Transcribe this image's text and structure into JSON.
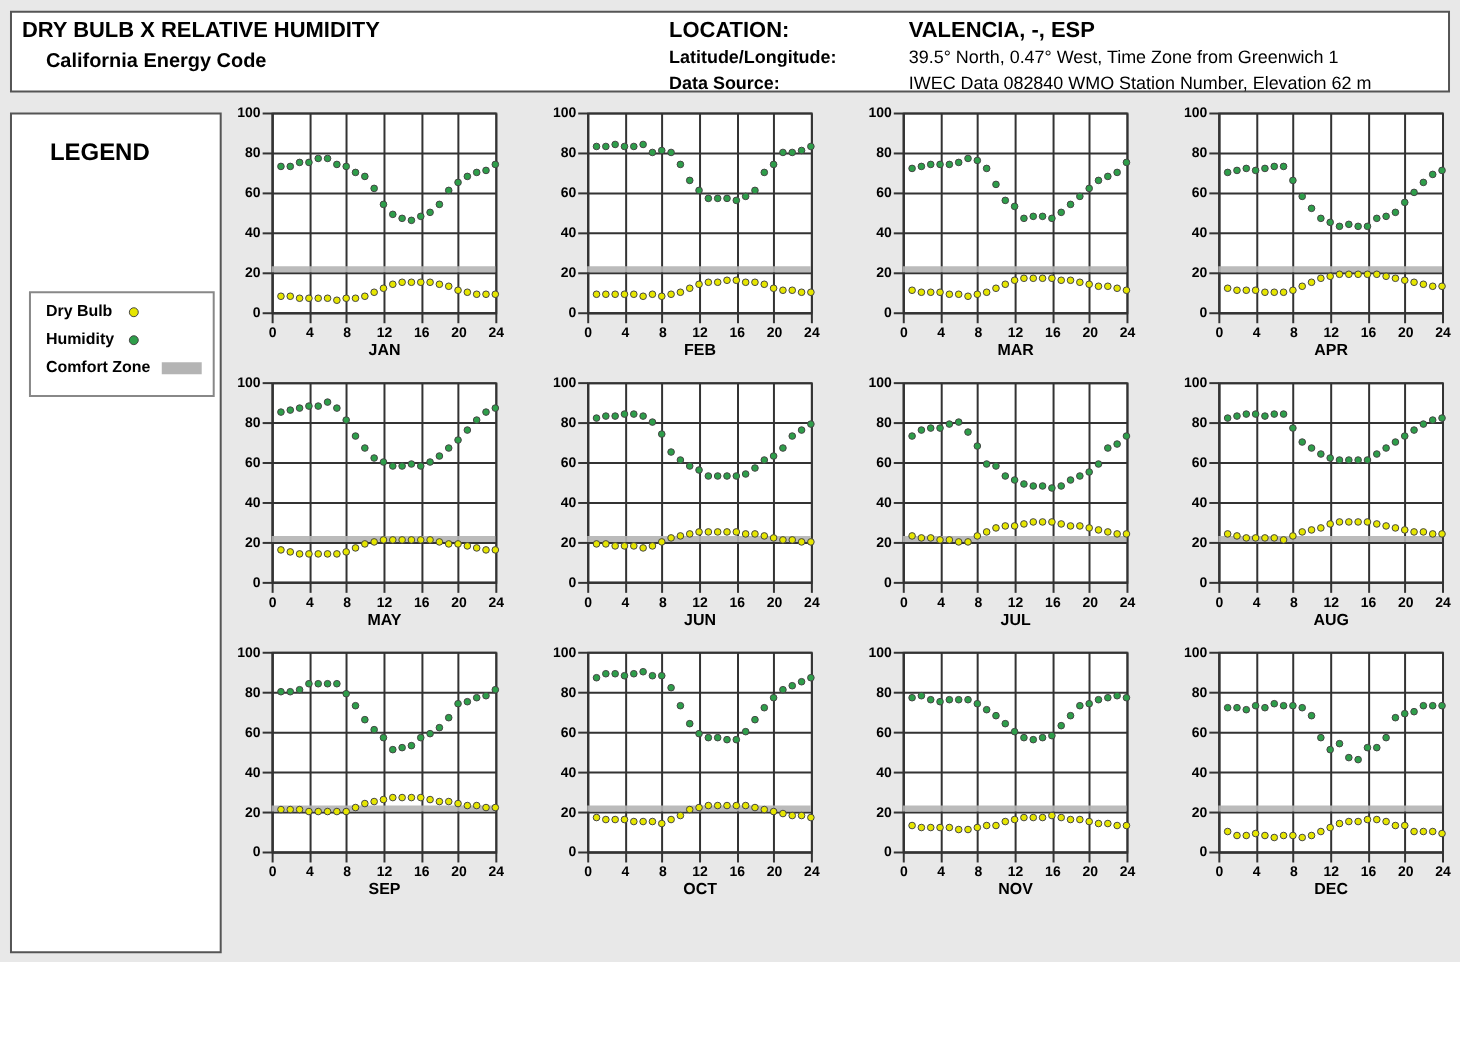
{
  "chart_data": [
    {
      "type": "other",
      "title": "DRY BULB X RELATIVE HUMIDITY",
      "subtitle": "California Energy Code",
      "annotations": [
        "LOCATION:",
        "VALENCIA, -, ESP",
        "Latitude/Longitude:",
        "39.5° North, 0.47° West, Time Zone from Greenwich 1",
        "Data Source:",
        "IWEC Data     082840 WMO Station Number, Elevation 62 m"
      ]
    },
    {
      "type": "scatter",
      "xlabel": "JAN",
      "x": [
        1,
        2,
        3,
        4,
        5,
        6,
        7,
        8,
        9,
        10,
        11,
        12,
        13,
        14,
        15,
        16,
        17,
        18,
        19,
        20,
        21,
        22,
        23,
        24
      ],
      "xlim": [
        0,
        24
      ],
      "xticks": [
        0,
        4,
        8,
        12,
        16,
        20,
        24
      ],
      "ylim": [
        0,
        100
      ],
      "yticks": [
        0,
        20,
        40,
        60,
        80,
        100
      ],
      "grid": true,
      "marker": "circle",
      "legend": "left",
      "legend_title": "LEGEND",
      "series": [
        {
          "name": "Dry Bulb",
          "color": "#e6e600",
          "values": [
            8,
            8,
            7,
            7,
            7,
            7,
            6,
            7,
            7,
            8,
            10,
            12,
            14,
            15,
            15,
            15,
            15,
            14,
            13,
            11,
            10,
            9,
            9,
            9
          ]
        },
        {
          "name": "Humidity",
          "color": "#2e9e4a",
          "values": [
            73,
            73,
            75,
            75,
            77,
            77,
            74,
            73,
            70,
            68,
            62,
            54,
            49,
            47,
            46,
            48,
            50,
            54,
            61,
            65,
            68,
            70,
            71,
            74
          ]
        }
      ],
      "bands": [
        {
          "axis": "y",
          "from": 20,
          "to": 23,
          "label": "Comfort Zone",
          "color": "#b4b4b4"
        }
      ]
    },
    {
      "type": "scatter",
      "xlabel": "FEB",
      "x": [
        1,
        2,
        3,
        4,
        5,
        6,
        7,
        8,
        9,
        10,
        11,
        12,
        13,
        14,
        15,
        16,
        17,
        18,
        19,
        20,
        21,
        22,
        23,
        24
      ],
      "xlim": [
        0,
        24
      ],
      "xticks": [
        0,
        4,
        8,
        12,
        16,
        20,
        24
      ],
      "ylim": [
        0,
        100
      ],
      "yticks": [
        0,
        20,
        40,
        60,
        80,
        100
      ],
      "grid": true,
      "marker": "circle",
      "series": [
        {
          "color": "#e6e600",
          "values": [
            9,
            9,
            9,
            9,
            9,
            8,
            9,
            8,
            9,
            10,
            12,
            14,
            15,
            15,
            16,
            16,
            15,
            15,
            14,
            12,
            11,
            11,
            10,
            10
          ]
        },
        {
          "color": "#2e9e4a",
          "values": [
            83,
            83,
            84,
            83,
            83,
            84,
            80,
            81,
            80,
            74,
            66,
            61,
            57,
            57,
            57,
            56,
            58,
            61,
            70,
            74,
            80,
            80,
            81,
            83
          ]
        }
      ],
      "bands": [
        {
          "axis": "y",
          "from": 20,
          "to": 23,
          "color": "#b4b4b4"
        }
      ]
    },
    {
      "type": "scatter",
      "xlabel": "MAR",
      "x": [
        1,
        2,
        3,
        4,
        5,
        6,
        7,
        8,
        9,
        10,
        11,
        12,
        13,
        14,
        15,
        16,
        17,
        18,
        19,
        20,
        21,
        22,
        23,
        24
      ],
      "xlim": [
        0,
        24
      ],
      "xticks": [
        0,
        4,
        8,
        12,
        16,
        20,
        24
      ],
      "ylim": [
        0,
        100
      ],
      "yticks": [
        0,
        20,
        40,
        60,
        80,
        100
      ],
      "grid": true,
      "marker": "circle",
      "series": [
        {
          "color": "#e6e600",
          "values": [
            11,
            10,
            10,
            10,
            9,
            9,
            8,
            9,
            10,
            12,
            14,
            16,
            17,
            17,
            17,
            17,
            16,
            16,
            15,
            14,
            13,
            13,
            12,
            11
          ]
        },
        {
          "color": "#2e9e4a",
          "values": [
            72,
            73,
            74,
            74,
            74,
            75,
            77,
            76,
            72,
            64,
            56,
            53,
            47,
            48,
            48,
            47,
            50,
            54,
            58,
            62,
            66,
            68,
            70,
            75
          ]
        }
      ],
      "bands": [
        {
          "axis": "y",
          "from": 20,
          "to": 23,
          "color": "#b4b4b4"
        }
      ]
    },
    {
      "type": "scatter",
      "xlabel": "APR",
      "x": [
        1,
        2,
        3,
        4,
        5,
        6,
        7,
        8,
        9,
        10,
        11,
        12,
        13,
        14,
        15,
        16,
        17,
        18,
        19,
        20,
        21,
        22,
        23,
        24
      ],
      "xlim": [
        0,
        24
      ],
      "xticks": [
        0,
        4,
        8,
        12,
        16,
        20,
        24
      ],
      "ylim": [
        0,
        100
      ],
      "yticks": [
        0,
        20,
        40,
        60,
        80,
        100
      ],
      "grid": true,
      "marker": "circle",
      "series": [
        {
          "color": "#e6e600",
          "values": [
            12,
            11,
            11,
            11,
            10,
            10,
            10,
            11,
            13,
            15,
            17,
            18,
            19,
            19,
            19,
            19,
            19,
            18,
            17,
            16,
            15,
            14,
            13,
            13
          ]
        },
        {
          "color": "#2e9e4a",
          "values": [
            70,
            71,
            72,
            71,
            72,
            73,
            73,
            66,
            58,
            52,
            47,
            45,
            43,
            44,
            43,
            43,
            47,
            48,
            50,
            55,
            60,
            65,
            69,
            71
          ]
        }
      ],
      "bands": [
        {
          "axis": "y",
          "from": 20,
          "to": 23,
          "color": "#b4b4b4"
        }
      ]
    },
    {
      "type": "scatter",
      "xlabel": "MAY",
      "x": [
        1,
        2,
        3,
        4,
        5,
        6,
        7,
        8,
        9,
        10,
        11,
        12,
        13,
        14,
        15,
        16,
        17,
        18,
        19,
        20,
        21,
        22,
        23,
        24
      ],
      "xlim": [
        0,
        24
      ],
      "xticks": [
        0,
        4,
        8,
        12,
        16,
        20,
        24
      ],
      "ylim": [
        0,
        100
      ],
      "yticks": [
        0,
        20,
        40,
        60,
        80,
        100
      ],
      "grid": true,
      "marker": "circle",
      "series": [
        {
          "color": "#e6e600",
          "values": [
            16,
            15,
            14,
            14,
            14,
            14,
            14,
            15,
            17,
            19,
            20,
            21,
            21,
            21,
            21,
            21,
            21,
            20,
            19,
            19,
            18,
            17,
            16,
            16
          ]
        },
        {
          "color": "#2e9e4a",
          "values": [
            85,
            86,
            87,
            88,
            88,
            90,
            87,
            81,
            73,
            67,
            62,
            60,
            58,
            58,
            59,
            58,
            60,
            63,
            67,
            71,
            76,
            81,
            85,
            87
          ]
        }
      ],
      "bands": [
        {
          "axis": "y",
          "from": 20,
          "to": 23,
          "color": "#b4b4b4"
        }
      ]
    },
    {
      "type": "scatter",
      "xlabel": "JUN",
      "x": [
        1,
        2,
        3,
        4,
        5,
        6,
        7,
        8,
        9,
        10,
        11,
        12,
        13,
        14,
        15,
        16,
        17,
        18,
        19,
        20,
        21,
        22,
        23,
        24
      ],
      "xlim": [
        0,
        24
      ],
      "xticks": [
        0,
        4,
        8,
        12,
        16,
        20,
        24
      ],
      "ylim": [
        0,
        100
      ],
      "yticks": [
        0,
        20,
        40,
        60,
        80,
        100
      ],
      "grid": true,
      "marker": "circle",
      "series": [
        {
          "color": "#e6e600",
          "values": [
            19,
            19,
            18,
            18,
            18,
            17,
            18,
            20,
            22,
            23,
            24,
            25,
            25,
            25,
            25,
            25,
            24,
            24,
            23,
            22,
            21,
            21,
            20,
            20
          ]
        },
        {
          "color": "#2e9e4a",
          "values": [
            82,
            83,
            83,
            84,
            84,
            83,
            80,
            74,
            65,
            61,
            58,
            56,
            53,
            53,
            53,
            53,
            54,
            57,
            61,
            63,
            67,
            73,
            76,
            79
          ]
        }
      ],
      "bands": [
        {
          "axis": "y",
          "from": 20,
          "to": 23,
          "color": "#b4b4b4"
        }
      ]
    },
    {
      "type": "scatter",
      "xlabel": "JUL",
      "x": [
        1,
        2,
        3,
        4,
        5,
        6,
        7,
        8,
        9,
        10,
        11,
        12,
        13,
        14,
        15,
        16,
        17,
        18,
        19,
        20,
        21,
        22,
        23,
        24
      ],
      "xlim": [
        0,
        24
      ],
      "xticks": [
        0,
        4,
        8,
        12,
        16,
        20,
        24
      ],
      "ylim": [
        0,
        100
      ],
      "yticks": [
        0,
        20,
        40,
        60,
        80,
        100
      ],
      "grid": true,
      "marker": "circle",
      "series": [
        {
          "color": "#e6e600",
          "values": [
            23,
            22,
            22,
            21,
            21,
            20,
            20,
            23,
            25,
            27,
            28,
            28,
            29,
            30,
            30,
            30,
            29,
            28,
            28,
            27,
            26,
            25,
            24,
            24
          ]
        },
        {
          "color": "#2e9e4a",
          "values": [
            73,
            76,
            77,
            77,
            79,
            80,
            75,
            68,
            59,
            58,
            53,
            51,
            49,
            48,
            48,
            47,
            48,
            51,
            53,
            55,
            59,
            67,
            69,
            73
          ]
        }
      ],
      "bands": [
        {
          "axis": "y",
          "from": 20,
          "to": 23,
          "color": "#b4b4b4"
        }
      ]
    },
    {
      "type": "scatter",
      "xlabel": "AUG",
      "x": [
        1,
        2,
        3,
        4,
        5,
        6,
        7,
        8,
        9,
        10,
        11,
        12,
        13,
        14,
        15,
        16,
        17,
        18,
        19,
        20,
        21,
        22,
        23,
        24
      ],
      "xlim": [
        0,
        24
      ],
      "xticks": [
        0,
        4,
        8,
        12,
        16,
        20,
        24
      ],
      "ylim": [
        0,
        100
      ],
      "yticks": [
        0,
        20,
        40,
        60,
        80,
        100
      ],
      "grid": true,
      "marker": "circle",
      "series": [
        {
          "color": "#e6e600",
          "values": [
            24,
            23,
            22,
            22,
            22,
            22,
            21,
            23,
            25,
            26,
            27,
            29,
            30,
            30,
            30,
            30,
            29,
            28,
            27,
            26,
            25,
            25,
            24,
            24
          ]
        },
        {
          "color": "#2e9e4a",
          "values": [
            82,
            83,
            84,
            84,
            83,
            84,
            84,
            77,
            70,
            67,
            64,
            62,
            61,
            61,
            61,
            61,
            64,
            67,
            70,
            73,
            76,
            79,
            81,
            82
          ]
        }
      ],
      "bands": [
        {
          "axis": "y",
          "from": 20,
          "to": 23,
          "color": "#b4b4b4"
        }
      ]
    },
    {
      "type": "scatter",
      "xlabel": "SEP",
      "x": [
        1,
        2,
        3,
        4,
        5,
        6,
        7,
        8,
        9,
        10,
        11,
        12,
        13,
        14,
        15,
        16,
        17,
        18,
        19,
        20,
        21,
        22,
        23,
        24
      ],
      "xlim": [
        0,
        24
      ],
      "xticks": [
        0,
        4,
        8,
        12,
        16,
        20,
        24
      ],
      "ylim": [
        0,
        100
      ],
      "yticks": [
        0,
        20,
        40,
        60,
        80,
        100
      ],
      "grid": true,
      "marker": "circle",
      "series": [
        {
          "color": "#e6e600",
          "values": [
            21,
            21,
            21,
            20,
            20,
            20,
            20,
            20,
            22,
            24,
            25,
            26,
            27,
            27,
            27,
            27,
            26,
            25,
            25,
            24,
            23,
            23,
            22,
            22
          ]
        },
        {
          "color": "#2e9e4a",
          "values": [
            80,
            80,
            81,
            84,
            84,
            84,
            84,
            79,
            73,
            66,
            61,
            57,
            51,
            52,
            53,
            57,
            59,
            62,
            67,
            74,
            75,
            77,
            78,
            81
          ]
        }
      ],
      "bands": [
        {
          "axis": "y",
          "from": 20,
          "to": 23,
          "color": "#b4b4b4"
        }
      ]
    },
    {
      "type": "scatter",
      "xlabel": "OCT",
      "x": [
        1,
        2,
        3,
        4,
        5,
        6,
        7,
        8,
        9,
        10,
        11,
        12,
        13,
        14,
        15,
        16,
        17,
        18,
        19,
        20,
        21,
        22,
        23,
        24
      ],
      "xlim": [
        0,
        24
      ],
      "xticks": [
        0,
        4,
        8,
        12,
        16,
        20,
        24
      ],
      "ylim": [
        0,
        100
      ],
      "yticks": [
        0,
        20,
        40,
        60,
        80,
        100
      ],
      "grid": true,
      "marker": "circle",
      "series": [
        {
          "color": "#e6e600",
          "values": [
            17,
            16,
            16,
            16,
            15,
            15,
            15,
            14,
            16,
            18,
            21,
            22,
            23,
            23,
            23,
            23,
            23,
            22,
            21,
            20,
            19,
            18,
            18,
            17
          ]
        },
        {
          "color": "#2e9e4a",
          "values": [
            87,
            89,
            89,
            88,
            89,
            90,
            88,
            88,
            82,
            73,
            64,
            59,
            57,
            57,
            56,
            56,
            60,
            66,
            72,
            77,
            81,
            83,
            85,
            87
          ]
        }
      ],
      "bands": [
        {
          "axis": "y",
          "from": 20,
          "to": 23,
          "color": "#b4b4b4"
        }
      ]
    },
    {
      "type": "scatter",
      "xlabel": "NOV",
      "x": [
        1,
        2,
        3,
        4,
        5,
        6,
        7,
        8,
        9,
        10,
        11,
        12,
        13,
        14,
        15,
        16,
        17,
        18,
        19,
        20,
        21,
        22,
        23,
        24
      ],
      "xlim": [
        0,
        24
      ],
      "xticks": [
        0,
        4,
        8,
        12,
        16,
        20,
        24
      ],
      "ylim": [
        0,
        100
      ],
      "yticks": [
        0,
        20,
        40,
        60,
        80,
        100
      ],
      "grid": true,
      "marker": "circle",
      "series": [
        {
          "color": "#e6e600",
          "values": [
            13,
            12,
            12,
            12,
            12,
            11,
            11,
            12,
            13,
            13,
            15,
            16,
            17,
            17,
            17,
            18,
            17,
            16,
            16,
            15,
            14,
            14,
            13,
            13
          ]
        },
        {
          "color": "#2e9e4a",
          "values": [
            77,
            78,
            76,
            75,
            76,
            76,
            76,
            74,
            71,
            68,
            64,
            60,
            57,
            56,
            57,
            58,
            63,
            68,
            73,
            74,
            76,
            77,
            78,
            77
          ]
        }
      ],
      "bands": [
        {
          "axis": "y",
          "from": 20,
          "to": 23,
          "color": "#b4b4b4"
        }
      ]
    },
    {
      "type": "scatter",
      "xlabel": "DEC",
      "x": [
        1,
        2,
        3,
        4,
        5,
        6,
        7,
        8,
        9,
        10,
        11,
        12,
        13,
        14,
        15,
        16,
        17,
        18,
        19,
        20,
        21,
        22,
        23,
        24
      ],
      "xlim": [
        0,
        24
      ],
      "xticks": [
        0,
        4,
        8,
        12,
        16,
        20,
        24
      ],
      "ylim": [
        0,
        100
      ],
      "yticks": [
        0,
        20,
        40,
        60,
        80,
        100
      ],
      "grid": true,
      "marker": "circle",
      "series": [
        {
          "color": "#e6e600",
          "values": [
            10,
            8,
            8,
            9,
            8,
            7,
            8,
            8,
            7,
            8,
            10,
            12,
            14,
            15,
            15,
            16,
            16,
            15,
            13,
            13,
            10,
            10,
            10,
            9
          ]
        },
        {
          "color": "#2e9e4a",
          "values": [
            72,
            72,
            71,
            73,
            72,
            74,
            73,
            73,
            72,
            68,
            57,
            51,
            54,
            47,
            46,
            52,
            52,
            57,
            67,
            69,
            70,
            73,
            73,
            73
          ]
        }
      ],
      "bands": [
        {
          "axis": "y",
          "from": 20,
          "to": 23,
          "color": "#b4b4b4"
        }
      ]
    }
  ]
}
